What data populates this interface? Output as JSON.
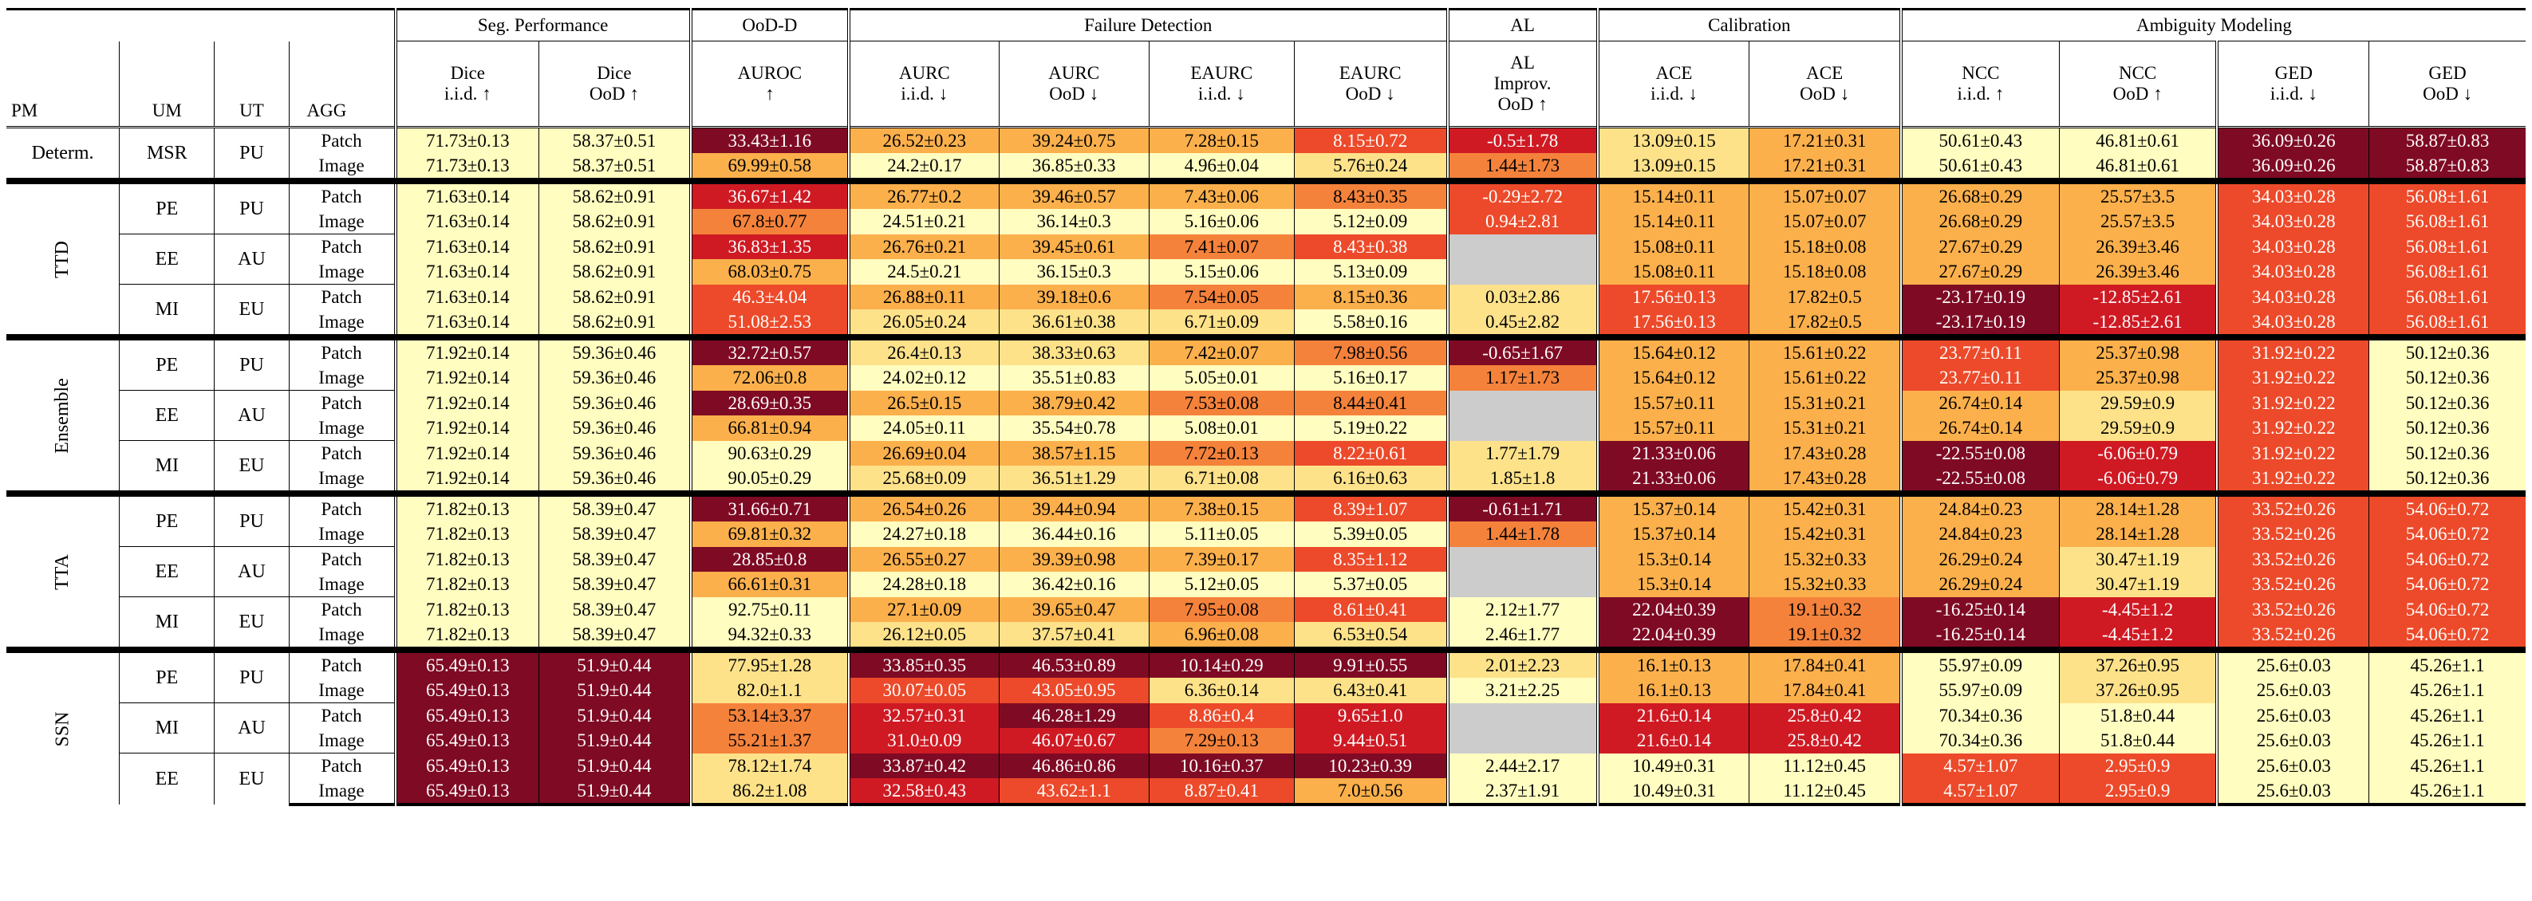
{
  "headers": {
    "groups": {
      "seg": "Seg. Performance",
      "ood": "OoD-D",
      "fd": "Failure Detection",
      "al": "AL",
      "cal": "Calibration",
      "amb": "Ambiguity Modeling"
    },
    "cols": {
      "pm": "PM",
      "um": "UM",
      "ut": "UT",
      "agg": "AGG",
      "dice_iid_1": "Dice",
      "dice_iid_2": "i.i.d. ↑",
      "dice_ood_1": "Dice",
      "dice_ood_2": "OoD ↑",
      "auroc_1": "AUROC",
      "auroc_2": "↑",
      "aurc_iid_1": "AURC",
      "aurc_iid_2": "i.i.d. ↓",
      "aurc_ood_1": "AURC",
      "aurc_ood_2": "OoD ↓",
      "eaurc_iid_1": "EAURC",
      "eaurc_iid_2": "i.i.d. ↓",
      "eaurc_ood_1": "EAURC",
      "eaurc_ood_2": "OoD ↓",
      "al_1": "AL",
      "al_2": "Improv.",
      "al_3": "OoD ↑",
      "ace_iid_1": "ACE",
      "ace_iid_2": "i.i.d. ↓",
      "ace_ood_1": "ACE",
      "ace_ood_2": "OoD ↓",
      "ncc_iid_1": "NCC",
      "ncc_iid_2": "i.i.d. ↑",
      "ncc_ood_1": "NCC",
      "ncc_ood_2": "OoD ↑",
      "ged_iid_1": "GED",
      "ged_iid_2": "i.i.d. ↓",
      "ged_ood_1": "GED",
      "ged_ood_2": "OoD ↓"
    }
  },
  "colors": {
    "c1": "#fffdc0",
    "c2": "#fde28a",
    "c3": "#fbb04c",
    "c4": "#f5823b",
    "c5": "#ec4a2a",
    "c6": "#cf1a23",
    "c7": "#7f0a24",
    "gray": "#cccccc"
  },
  "rows": [
    {
      "pm": "Determ.",
      "um": "MSR",
      "ut": "PU",
      "agg": "Patch",
      "vals": [
        "71.73±0.13",
        "58.37±0.51",
        "33.43±1.16",
        "26.52±0.23",
        "39.24±0.75",
        "7.28±0.15",
        "8.15±0.72",
        "-0.5±1.78",
        "13.09±0.15",
        "17.21±0.31",
        "50.61±0.43",
        "46.81±0.61",
        "36.09±0.26",
        "58.87±0.83"
      ],
      "shade": [
        1,
        1,
        7,
        3,
        3,
        3,
        5,
        6,
        2,
        3,
        1,
        1,
        7,
        7
      ]
    },
    {
      "agg": "Image",
      "vals": [
        "71.73±0.13",
        "58.37±0.51",
        "69.99±0.58",
        "24.2±0.17",
        "36.85±0.33",
        "4.96±0.04",
        "5.76±0.24",
        "1.44±1.73",
        "13.09±0.15",
        "17.21±0.31",
        "50.61±0.43",
        "46.81±0.61",
        "36.09±0.26",
        "58.87±0.83"
      ],
      "shade": [
        1,
        1,
        3,
        1,
        1,
        1,
        2,
        4,
        2,
        3,
        1,
        1,
        7,
        7
      ]
    },
    {
      "pm": "TTD",
      "um": "PE",
      "ut": "PU",
      "agg": "Patch",
      "vals": [
        "71.63±0.14",
        "58.62±0.91",
        "36.67±1.42",
        "26.77±0.2",
        "39.46±0.57",
        "7.43±0.06",
        "8.43±0.35",
        "-0.29±2.72",
        "15.14±0.11",
        "15.07±0.07",
        "26.68±0.29",
        "25.57±3.5",
        "34.03±0.28",
        "56.08±1.61"
      ],
      "shade": [
        1,
        1,
        6,
        3,
        3,
        3,
        4,
        5,
        3,
        3,
        3,
        3,
        5,
        5
      ]
    },
    {
      "agg": "Image",
      "vals": [
        "71.63±0.14",
        "58.62±0.91",
        "67.8±0.77",
        "24.51±0.21",
        "36.14±0.3",
        "5.16±0.06",
        "5.12±0.09",
        "0.94±2.81",
        "15.14±0.11",
        "15.07±0.07",
        "26.68±0.29",
        "25.57±3.5",
        "34.03±0.28",
        "56.08±1.61"
      ],
      "shade": [
        1,
        1,
        4,
        1,
        1,
        1,
        1,
        5,
        3,
        3,
        3,
        3,
        5,
        5
      ]
    },
    {
      "um": "EE",
      "ut": "AU",
      "agg": "Patch",
      "vals": [
        "71.63±0.14",
        "58.62±0.91",
        "36.83±1.35",
        "26.76±0.21",
        "39.45±0.61",
        "7.41±0.07",
        "8.43±0.38",
        "",
        "15.08±0.11",
        "15.18±0.08",
        "27.67±0.29",
        "26.39±3.46",
        "34.03±0.28",
        "56.08±1.61"
      ],
      "shade": [
        1,
        1,
        6,
        3,
        3,
        4,
        5,
        0,
        3,
        3,
        3,
        3,
        5,
        5
      ]
    },
    {
      "agg": "Image",
      "vals": [
        "71.63±0.14",
        "58.62±0.91",
        "68.03±0.75",
        "24.5±0.21",
        "36.15±0.3",
        "5.15±0.06",
        "5.13±0.09",
        "",
        "15.08±0.11",
        "15.18±0.08",
        "27.67±0.29",
        "26.39±3.46",
        "34.03±0.28",
        "56.08±1.61"
      ],
      "shade": [
        1,
        1,
        3,
        1,
        1,
        1,
        1,
        0,
        3,
        3,
        3,
        3,
        5,
        5
      ]
    },
    {
      "um": "MI",
      "ut": "EU",
      "agg": "Patch",
      "vals": [
        "71.63±0.14",
        "58.62±0.91",
        "46.3±4.04",
        "26.88±0.11",
        "39.18±0.6",
        "7.54±0.05",
        "8.15±0.36",
        "0.03±2.86",
        "17.56±0.13",
        "17.82±0.5",
        "-23.17±0.19",
        "-12.85±2.61",
        "34.03±0.28",
        "56.08±1.61"
      ],
      "shade": [
        1,
        1,
        5,
        3,
        3,
        4,
        3,
        2,
        5,
        3,
        7,
        6,
        5,
        5
      ]
    },
    {
      "agg": "Image",
      "vals": [
        "71.63±0.14",
        "58.62±0.91",
        "51.08±2.53",
        "26.05±0.24",
        "36.61±0.38",
        "6.71±0.09",
        "5.58±0.16",
        "0.45±2.82",
        "17.56±0.13",
        "17.82±0.5",
        "-23.17±0.19",
        "-12.85±2.61",
        "34.03±0.28",
        "56.08±1.61"
      ],
      "shade": [
        1,
        1,
        5,
        2,
        2,
        2,
        1,
        2,
        5,
        3,
        7,
        6,
        5,
        5
      ]
    },
    {
      "pm": "Ensemble",
      "um": "PE",
      "ut": "PU",
      "agg": "Patch",
      "vals": [
        "71.92±0.14",
        "59.36±0.46",
        "32.72±0.57",
        "26.4±0.13",
        "38.33±0.63",
        "7.42±0.07",
        "7.98±0.56",
        "-0.65±1.67",
        "15.64±0.12",
        "15.61±0.22",
        "23.77±0.11",
        "25.37±0.98",
        "31.92±0.22",
        "50.12±0.36"
      ],
      "shade": [
        1,
        1,
        7,
        2,
        2,
        3,
        4,
        7,
        3,
        3,
        5,
        3,
        5,
        1
      ]
    },
    {
      "agg": "Image",
      "vals": [
        "71.92±0.14",
        "59.36±0.46",
        "72.06±0.8",
        "24.02±0.12",
        "35.51±0.83",
        "5.05±0.01",
        "5.16±0.17",
        "1.17±1.73",
        "15.64±0.12",
        "15.61±0.22",
        "23.77±0.11",
        "25.37±0.98",
        "31.92±0.22",
        "50.12±0.36"
      ],
      "shade": [
        1,
        1,
        3,
        1,
        1,
        1,
        1,
        4,
        3,
        3,
        5,
        3,
        5,
        1
      ]
    },
    {
      "um": "EE",
      "ut": "AU",
      "agg": "Patch",
      "vals": [
        "71.92±0.14",
        "59.36±0.46",
        "28.69±0.35",
        "26.5±0.15",
        "38.79±0.42",
        "7.53±0.08",
        "8.44±0.41",
        "",
        "15.57±0.11",
        "15.31±0.21",
        "26.74±0.14",
        "29.59±0.9",
        "31.92±0.22",
        "50.12±0.36"
      ],
      "shade": [
        1,
        1,
        7,
        3,
        3,
        4,
        4,
        0,
        3,
        3,
        3,
        2,
        5,
        1
      ]
    },
    {
      "agg": "Image",
      "vals": [
        "71.92±0.14",
        "59.36±0.46",
        "66.81±0.94",
        "24.05±0.11",
        "35.54±0.78",
        "5.08±0.01",
        "5.19±0.22",
        "",
        "15.57±0.11",
        "15.31±0.21",
        "26.74±0.14",
        "29.59±0.9",
        "31.92±0.22",
        "50.12±0.36"
      ],
      "shade": [
        1,
        1,
        3,
        1,
        1,
        1,
        1,
        0,
        3,
        3,
        3,
        2,
        5,
        1
      ]
    },
    {
      "um": "MI",
      "ut": "EU",
      "agg": "Patch",
      "vals": [
        "71.92±0.14",
        "59.36±0.46",
        "90.63±0.29",
        "26.69±0.04",
        "38.57±1.15",
        "7.72±0.13",
        "8.22±0.61",
        "1.77±1.79",
        "21.33±0.06",
        "17.43±0.28",
        "-22.55±0.08",
        "-6.06±0.79",
        "31.92±0.22",
        "50.12±0.36"
      ],
      "shade": [
        1,
        1,
        1,
        3,
        3,
        4,
        5,
        2,
        7,
        3,
        7,
        6,
        5,
        1
      ]
    },
    {
      "agg": "Image",
      "vals": [
        "71.92±0.14",
        "59.36±0.46",
        "90.05±0.29",
        "25.68±0.09",
        "36.51±1.29",
        "6.71±0.08",
        "6.16±0.63",
        "1.85±1.8",
        "21.33±0.06",
        "17.43±0.28",
        "-22.55±0.08",
        "-6.06±0.79",
        "31.92±0.22",
        "50.12±0.36"
      ],
      "shade": [
        1,
        1,
        1,
        2,
        2,
        2,
        2,
        2,
        7,
        3,
        7,
        6,
        5,
        1
      ]
    },
    {
      "pm": "TTA",
      "um": "PE",
      "ut": "PU",
      "agg": "Patch",
      "vals": [
        "71.82±0.13",
        "58.39±0.47",
        "31.66±0.71",
        "26.54±0.26",
        "39.44±0.94",
        "7.38±0.15",
        "8.39±1.07",
        "-0.61±1.71",
        "15.37±0.14",
        "15.42±0.31",
        "24.84±0.23",
        "28.14±1.28",
        "33.52±0.26",
        "54.06±0.72"
      ],
      "shade": [
        1,
        1,
        7,
        3,
        3,
        3,
        5,
        7,
        3,
        3,
        3,
        3,
        5,
        5
      ]
    },
    {
      "agg": "Image",
      "vals": [
        "71.82±0.13",
        "58.39±0.47",
        "69.81±0.32",
        "24.27±0.18",
        "36.44±0.16",
        "5.11±0.05",
        "5.39±0.05",
        "1.44±1.78",
        "15.37±0.14",
        "15.42±0.31",
        "24.84±0.23",
        "28.14±1.28",
        "33.52±0.26",
        "54.06±0.72"
      ],
      "shade": [
        1,
        1,
        3,
        1,
        1,
        1,
        1,
        4,
        3,
        3,
        3,
        3,
        5,
        5
      ]
    },
    {
      "um": "EE",
      "ut": "AU",
      "agg": "Patch",
      "vals": [
        "71.82±0.13",
        "58.39±0.47",
        "28.85±0.8",
        "26.55±0.27",
        "39.39±0.98",
        "7.39±0.17",
        "8.35±1.12",
        "",
        "15.3±0.14",
        "15.32±0.33",
        "26.29±0.24",
        "30.47±1.19",
        "33.52±0.26",
        "54.06±0.72"
      ],
      "shade": [
        1,
        1,
        7,
        3,
        3,
        3,
        5,
        0,
        3,
        3,
        3,
        2,
        5,
        5
      ]
    },
    {
      "agg": "Image",
      "vals": [
        "71.82±0.13",
        "58.39±0.47",
        "66.61±0.31",
        "24.28±0.18",
        "36.42±0.16",
        "5.12±0.05",
        "5.37±0.05",
        "",
        "15.3±0.14",
        "15.32±0.33",
        "26.29±0.24",
        "30.47±1.19",
        "33.52±0.26",
        "54.06±0.72"
      ],
      "shade": [
        1,
        1,
        3,
        1,
        1,
        1,
        1,
        0,
        3,
        3,
        3,
        2,
        5,
        5
      ]
    },
    {
      "um": "MI",
      "ut": "EU",
      "agg": "Patch",
      "vals": [
        "71.82±0.13",
        "58.39±0.47",
        "92.75±0.11",
        "27.1±0.09",
        "39.65±0.47",
        "7.95±0.08",
        "8.61±0.41",
        "2.12±1.77",
        "22.04±0.39",
        "19.1±0.32",
        "-16.25±0.14",
        "-4.45±1.2",
        "33.52±0.26",
        "54.06±0.72"
      ],
      "shade": [
        1,
        1,
        1,
        3,
        3,
        4,
        5,
        1,
        7,
        4,
        7,
        6,
        5,
        5
      ]
    },
    {
      "agg": "Image",
      "vals": [
        "71.82±0.13",
        "58.39±0.47",
        "94.32±0.33",
        "26.12±0.05",
        "37.57±0.41",
        "6.96±0.08",
        "6.53±0.54",
        "2.46±1.77",
        "22.04±0.39",
        "19.1±0.32",
        "-16.25±0.14",
        "-4.45±1.2",
        "33.52±0.26",
        "54.06±0.72"
      ],
      "shade": [
        1,
        1,
        1,
        2,
        2,
        3,
        2,
        1,
        7,
        4,
        7,
        6,
        5,
        5
      ]
    },
    {
      "pm": "SSN",
      "um": "PE",
      "ut": "PU",
      "agg": "Patch",
      "vals": [
        "65.49±0.13",
        "51.9±0.44",
        "77.95±1.28",
        "33.85±0.35",
        "46.53±0.89",
        "10.14±0.29",
        "9.91±0.55",
        "2.01±2.23",
        "16.1±0.13",
        "17.84±0.41",
        "55.97±0.09",
        "37.26±0.95",
        "25.6±0.03",
        "45.26±1.1"
      ],
      "shade": [
        7,
        7,
        2,
        7,
        7,
        7,
        7,
        2,
        3,
        3,
        1,
        2,
        1,
        1
      ]
    },
    {
      "agg": "Image",
      "vals": [
        "65.49±0.13",
        "51.9±0.44",
        "82.0±1.1",
        "30.07±0.05",
        "43.05±0.95",
        "6.36±0.14",
        "6.43±0.41",
        "3.21±2.25",
        "16.1±0.13",
        "17.84±0.41",
        "55.97±0.09",
        "37.26±0.95",
        "25.6±0.03",
        "45.26±1.1"
      ],
      "shade": [
        7,
        7,
        2,
        5,
        5,
        2,
        2,
        1,
        3,
        3,
        1,
        2,
        1,
        1
      ]
    },
    {
      "um": "MI",
      "ut": "AU",
      "agg": "Patch",
      "vals": [
        "65.49±0.13",
        "51.9±0.44",
        "53.14±3.37",
        "32.57±0.31",
        "46.28±1.29",
        "8.86±0.4",
        "9.65±1.0",
        "",
        "21.6±0.14",
        "25.8±0.42",
        "70.34±0.36",
        "51.8±0.44",
        "25.6±0.03",
        "45.26±1.1"
      ],
      "shade": [
        7,
        7,
        4,
        6,
        7,
        5,
        6,
        0,
        6,
        6,
        1,
        1,
        1,
        1
      ]
    },
    {
      "agg": "Image",
      "vals": [
        "65.49±0.13",
        "51.9±0.44",
        "55.21±1.37",
        "31.0±0.09",
        "46.07±0.67",
        "7.29±0.13",
        "9.44±0.51",
        "",
        "21.6±0.14",
        "25.8±0.42",
        "70.34±0.36",
        "51.8±0.44",
        "25.6±0.03",
        "45.26±1.1"
      ],
      "shade": [
        7,
        7,
        4,
        6,
        6,
        4,
        6,
        0,
        6,
        6,
        1,
        1,
        1,
        1
      ]
    },
    {
      "um": "EE",
      "ut": "EU",
      "agg": "Patch",
      "vals": [
        "65.49±0.13",
        "51.9±0.44",
        "78.12±1.74",
        "33.87±0.42",
        "46.86±0.86",
        "10.16±0.37",
        "10.23±0.39",
        "2.44±2.17",
        "10.49±0.31",
        "11.12±0.45",
        "4.57±1.07",
        "2.95±0.9",
        "25.6±0.03",
        "45.26±1.1"
      ],
      "shade": [
        7,
        7,
        2,
        7,
        7,
        7,
        7,
        1,
        1,
        1,
        5,
        5,
        1,
        1
      ]
    },
    {
      "agg": "Image",
      "vals": [
        "65.49±0.13",
        "51.9±0.44",
        "86.2±1.08",
        "32.58±0.43",
        "43.62±1.1",
        "8.87±0.41",
        "7.0±0.56",
        "2.37±1.91",
        "10.49±0.31",
        "11.12±0.45",
        "4.57±1.07",
        "2.95±0.9",
        "25.6±0.03",
        "45.26±1.1"
      ],
      "shade": [
        7,
        7,
        2,
        6,
        5,
        5,
        3,
        1,
        1,
        1,
        5,
        5,
        1,
        1
      ]
    }
  ]
}
